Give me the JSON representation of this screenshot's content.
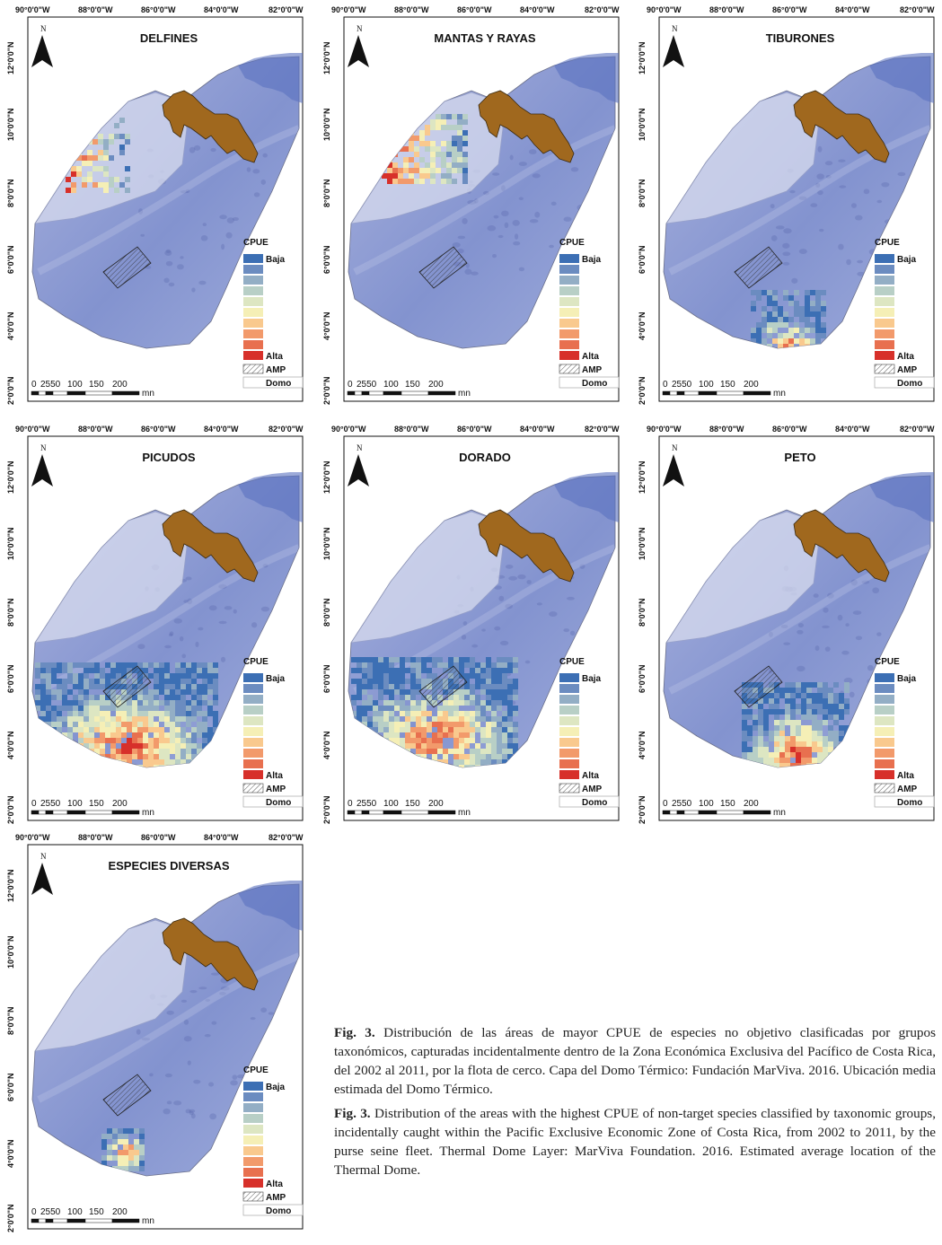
{
  "colors": {
    "ocean": "#8f9fd6",
    "ocean_light": "#c7cde8",
    "dome": "#d8dcef",
    "land": "#a0681e",
    "legend_ramp": [
      "#3c6fb4",
      "#6b8cc0",
      "#93aec5",
      "#b8cfc6",
      "#dde6c2",
      "#f5efb6",
      "#f9c98e",
      "#f29a6b",
      "#e8704f",
      "#d7302a"
    ]
  },
  "axis_labels": {
    "lon": [
      "90°0'0\"W",
      "88°0'0\"W",
      "86°0'0\"W",
      "84°0'0\"W",
      "82°0'0\"W"
    ],
    "lat": [
      "12°0'0\"N",
      "10°0'0\"N",
      "8°0'0\"N",
      "6°0'0\"N",
      "4°0'0\"N",
      "2°0'0\"N"
    ]
  },
  "north_arrow": "N",
  "legend": {
    "title": "CPUE",
    "low": "Baja",
    "high": "Alta",
    "amp": "AMP",
    "dome": "Domo"
  },
  "scale_bar": {
    "ticks": [
      "0",
      "2550",
      "100",
      "150",
      "200"
    ],
    "unit": "mn"
  },
  "panels": [
    {
      "title": "DELFINES",
      "hotspot": "north",
      "density": 0.45
    },
    {
      "title": "MANTAS Y RAYAS",
      "hotspot": "north-wide",
      "density": 0.7
    },
    {
      "title": "TIBURONES",
      "hotspot": "south",
      "density": 0.75
    },
    {
      "title": "PICUDOS",
      "hotspot": "south-wide",
      "density": 0.9
    },
    {
      "title": "DORADO",
      "hotspot": "south-west",
      "density": 0.85
    },
    {
      "title": "PETO",
      "hotspot": "south-mid",
      "density": 0.85
    },
    {
      "title": "ESPECIES DIVERSAS",
      "hotspot": "small",
      "density": 0.8
    }
  ],
  "caption": {
    "es_label": "Fig. 3.",
    "es_text": "Distribución de las áreas de mayor CPUE de especies no objetivo clasificadas por grupos taxonómicos, capturadas incidentalmente dentro de la Zona Económica Exclusiva del Pacífico de Costa Rica, del 2002 al 2011, por la flota de cerco. Capa del Domo Térmico: Fundación MarViva. 2016. Ubicación media estimada del Domo Térmico.",
    "en_label": "Fig. 3.",
    "en_text": "Distribution of the areas with the highest CPUE of non-target species classified by taxonomic groups, incidentally caught within the Pacific Exclusive Economic Zone of Costa Rica, from 2002 to 2011, by the purse seine fleet. Thermal Dome Layer: MarViva Foundation. 2016. Estimated average location of the Thermal Dome."
  }
}
